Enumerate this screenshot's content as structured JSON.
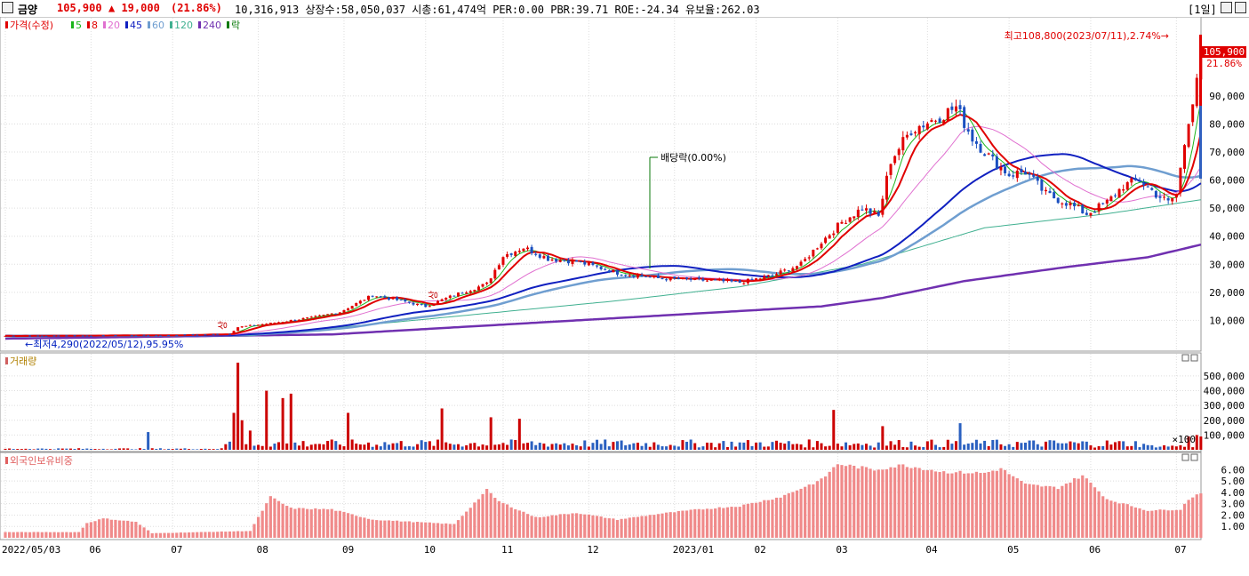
{
  "header": {
    "name": "금양",
    "price": "105,900",
    "change": "▲ 19,000",
    "change_pct": "(21.86%)",
    "stats": "10,316,913  상장수:58,050,037 시총:61,474억 PER:0.00 PBR:39.71 ROE:-24.34 유보율:262.03",
    "period": "[1일]"
  },
  "legend": {
    "price_label": "가격(수정)",
    "ma": [
      {
        "label": "5",
        "color": "#19b519"
      },
      {
        "label": "8",
        "color": "#e00000"
      },
      {
        "label": "20",
        "color": "#e070d0"
      },
      {
        "label": "45",
        "color": "#1020c0"
      },
      {
        "label": "60",
        "color": "#6f9ed0"
      },
      {
        "label": "120",
        "color": "#40b090"
      },
      {
        "label": "240",
        "color": "#7030b0"
      }
    ],
    "ex_div_label": "락",
    "volume_label": "거래량",
    "foreign_label": "외국인보유비중"
  },
  "annotations": {
    "high": "최고108,800(2023/07/11),2.74%→",
    "low": "←최저4,290(2022/05/12),95.95%",
    "ex_div": "배당락(0.00%)",
    "current_price_tag": "105,900",
    "current_pct_tag": "21.86%",
    "event_a": "상",
    "event_b": "상"
  },
  "chart_data": [
    {
      "type": "candlestick",
      "title": "가격(수정)",
      "y_ticks": [
        "10,000",
        "20,000",
        "30,000",
        "40,000",
        "50,000",
        "60,000",
        "70,000",
        "80,000",
        "90,000"
      ],
      "ylim": [
        0,
        115000
      ],
      "x_ticks": [
        {
          "label": "2022/05/03",
          "d": 0
        },
        {
          "label": "06",
          "d": 21
        },
        {
          "label": "07",
          "d": 41
        },
        {
          "label": "08",
          "d": 62
        },
        {
          "label": "09",
          "d": 83
        },
        {
          "label": "10",
          "d": 103
        },
        {
          "label": "11",
          "d": 122
        },
        {
          "label": "12",
          "d": 143
        },
        {
          "label": "2023/01",
          "d": 164
        },
        {
          "label": "02",
          "d": 184
        },
        {
          "label": "03",
          "d": 204
        },
        {
          "label": "04",
          "d": 226
        },
        {
          "label": "05",
          "d": 246
        },
        {
          "label": "06",
          "d": 266
        },
        {
          "label": "07",
          "d": 287
        }
      ],
      "close_keypoints": [
        [
          0,
          4500
        ],
        [
          40,
          4700
        ],
        [
          55,
          5200
        ],
        [
          57,
          7600
        ],
        [
          65,
          9000
        ],
        [
          75,
          11000
        ],
        [
          82,
          13000
        ],
        [
          90,
          19000
        ],
        [
          97,
          17000
        ],
        [
          103,
          15000
        ],
        [
          110,
          19000
        ],
        [
          118,
          23000
        ],
        [
          122,
          33000
        ],
        [
          127,
          36000
        ],
        [
          133,
          32000
        ],
        [
          140,
          31000
        ],
        [
          150,
          27000
        ],
        [
          160,
          25000
        ],
        [
          168,
          24500
        ],
        [
          175,
          24000
        ],
        [
          180,
          23500
        ],
        [
          188,
          26000
        ],
        [
          195,
          30000
        ],
        [
          200,
          38000
        ],
        [
          205,
          45000
        ],
        [
          210,
          50000
        ],
        [
          214,
          47000
        ],
        [
          217,
          67000
        ],
        [
          222,
          78000
        ],
        [
          228,
          82000
        ],
        [
          233,
          86000
        ],
        [
          237,
          75000
        ],
        [
          242,
          67000
        ],
        [
          246,
          62000
        ],
        [
          250,
          63000
        ],
        [
          255,
          55000
        ],
        [
          260,
          52000
        ],
        [
          265,
          48000
        ],
        [
          270,
          52000
        ],
        [
          274,
          58000
        ],
        [
          278,
          60000
        ],
        [
          282,
          55000
        ],
        [
          285,
          52000
        ],
        [
          287,
          55000
        ],
        [
          289,
          73000
        ],
        [
          291,
          87000
        ],
        [
          293,
          105900
        ]
      ],
      "ma_keypoints": {
        "120": [
          [
            0,
            4200
          ],
          [
            60,
            4500
          ],
          [
            100,
            10000
          ],
          [
            150,
            17000
          ],
          [
            180,
            22000
          ],
          [
            210,
            30000
          ],
          [
            240,
            43000
          ],
          [
            270,
            48000
          ],
          [
            293,
            53000
          ]
        ],
        "240": [
          [
            0,
            3500
          ],
          [
            80,
            5000
          ],
          [
            140,
            10000
          ],
          [
            200,
            15000
          ],
          [
            215,
            18000
          ],
          [
            235,
            24000
          ],
          [
            260,
            29000
          ],
          [
            280,
            32500
          ],
          [
            293,
            37000
          ]
        ]
      },
      "volume": {
        "y_ticks": [
          "100,000",
          "200,000",
          "300,000",
          "400,000",
          "500,000"
        ],
        "unit": "×100",
        "ylim": [
          0,
          620000
        ],
        "spikes": [
          [
            35,
            120000
          ],
          [
            56,
            250000
          ],
          [
            57,
            590000
          ],
          [
            58,
            200000
          ],
          [
            60,
            130000
          ],
          [
            64,
            400000
          ],
          [
            68,
            350000
          ],
          [
            70,
            380000
          ],
          [
            84,
            250000
          ],
          [
            107,
            280000
          ],
          [
            119,
            220000
          ],
          [
            126,
            210000
          ],
          [
            203,
            270000
          ],
          [
            215,
            160000
          ],
          [
            234,
            180000
          ],
          [
            290,
            90000
          ],
          [
            292,
            100000
          ],
          [
            293,
            90000
          ]
        ]
      },
      "foreign_holding": {
        "y_ticks": [
          "1.00",
          "2.00",
          "3.00",
          "4.00",
          "5.00",
          "6.00"
        ],
        "ylim": [
          0,
          7.2
        ],
        "keypoints": [
          [
            0,
            0.5
          ],
          [
            18,
            0.5
          ],
          [
            20,
            1.3
          ],
          [
            24,
            1.7
          ],
          [
            32,
            1.4
          ],
          [
            36,
            0.4
          ],
          [
            60,
            0.6
          ],
          [
            65,
            3.6
          ],
          [
            70,
            2.6
          ],
          [
            80,
            2.5
          ],
          [
            90,
            1.6
          ],
          [
            100,
            1.4
          ],
          [
            110,
            1.2
          ],
          [
            118,
            4.2
          ],
          [
            121,
            3.2
          ],
          [
            130,
            1.8
          ],
          [
            140,
            2.2
          ],
          [
            150,
            1.6
          ],
          [
            160,
            2.1
          ],
          [
            170,
            2.5
          ],
          [
            180,
            2.8
          ],
          [
            190,
            3.6
          ],
          [
            200,
            5.1
          ],
          [
            204,
            6.5
          ],
          [
            213,
            6.0
          ],
          [
            220,
            6.4
          ],
          [
            230,
            5.8
          ],
          [
            240,
            5.7
          ],
          [
            244,
            6.1
          ],
          [
            250,
            4.7
          ],
          [
            258,
            4.4
          ],
          [
            264,
            5.5
          ],
          [
            270,
            3.4
          ],
          [
            280,
            2.4
          ],
          [
            288,
            2.5
          ],
          [
            290,
            3.4
          ],
          [
            293,
            4.0
          ]
        ]
      }
    }
  ]
}
